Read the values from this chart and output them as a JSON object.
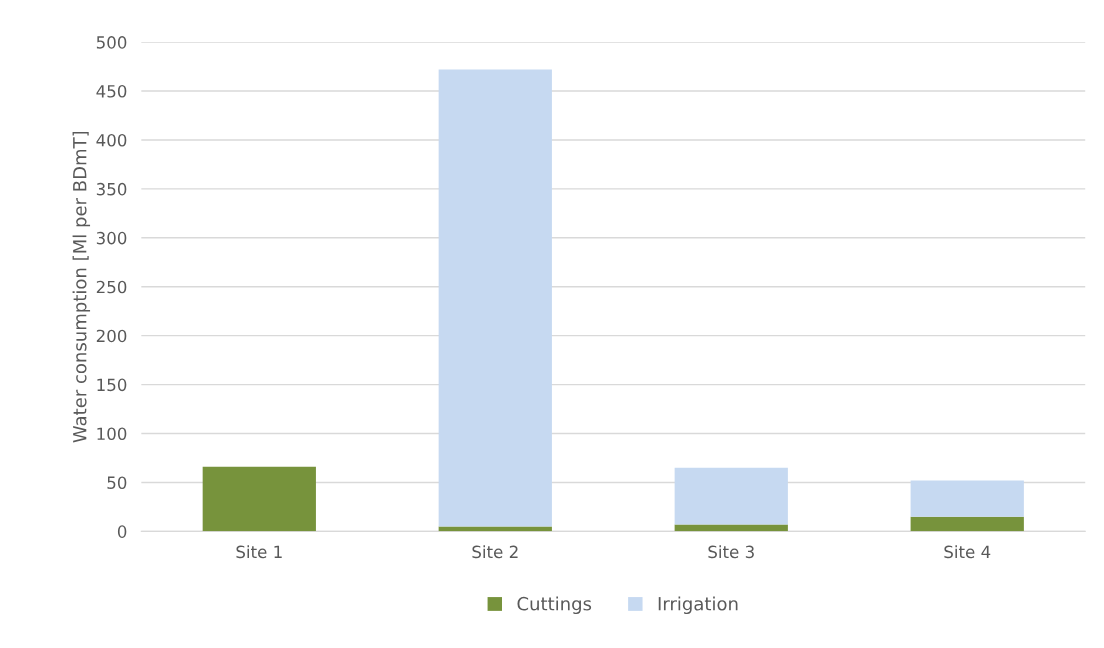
{
  "chart_data": {
    "type": "bar",
    "stacked": true,
    "ylabel": "Water consumption [Ml per BDmT]",
    "categories": [
      "Site 1",
      "Site 2",
      "Site 3",
      "Site 4"
    ],
    "series": [
      {
        "name": "Cuttings",
        "color": "#77933c",
        "values": [
          66,
          5,
          7,
          15
        ]
      },
      {
        "name": "Irrigation",
        "color": "#c6d9f1",
        "values": [
          0,
          467,
          58,
          37
        ]
      }
    ],
    "ylim": [
      0,
      500
    ],
    "yticks": [
      0,
      50,
      100,
      150,
      200,
      250,
      300,
      350,
      400,
      450,
      500
    ],
    "grid": "y",
    "legend": "bottom"
  }
}
